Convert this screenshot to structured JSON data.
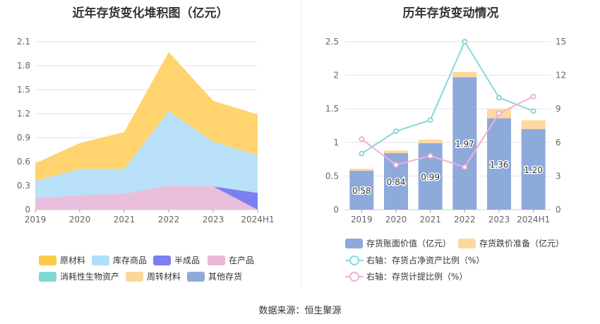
{
  "source_text": "数据来源：恒生聚源",
  "chart_data": [
    {
      "type": "area",
      "stacked": true,
      "title": "近年存货变化堆积图（亿元）",
      "categories": [
        "2019",
        "2020",
        "2021",
        "2022",
        "2023",
        "2024H1"
      ],
      "ylim": [
        0,
        2.1
      ],
      "yticks": [
        "0",
        "0.3",
        "0.6",
        "0.9",
        "1.2",
        "1.5",
        "1.8",
        "2.1"
      ],
      "series": [
        {
          "name": "在产品",
          "color": "#e9bedc",
          "values": [
            0.14,
            0.18,
            0.2,
            0.3,
            0.29,
            0.0
          ]
        },
        {
          "name": "半成品",
          "color": "#7b7ff0",
          "values": [
            0.0,
            0.0,
            0.0,
            0.0,
            0.0,
            0.21
          ]
        },
        {
          "name": "库存商品",
          "color": "#b8e0f8",
          "values": [
            0.22,
            0.33,
            0.31,
            0.93,
            0.56,
            0.47
          ]
        },
        {
          "name": "原材料",
          "color": "#ffd36e",
          "values": [
            0.22,
            0.32,
            0.46,
            0.74,
            0.51,
            0.51
          ]
        },
        {
          "name": "消耗性生物资产",
          "color": "#7fd7d2",
          "values": [
            0,
            0,
            0,
            0,
            0,
            0
          ]
        },
        {
          "name": "周转材料",
          "color": "#fdd9a0",
          "values": [
            0,
            0,
            0,
            0,
            0,
            0
          ]
        },
        {
          "name": "其他存货",
          "color": "#8eaadb",
          "values": [
            0,
            0,
            0,
            0,
            0,
            0
          ]
        }
      ],
      "legend": [
        {
          "name": "原材料",
          "color": "#ffc94a"
        },
        {
          "name": "库存商品",
          "color": "#aee0fb"
        },
        {
          "name": "半成品",
          "color": "#7b7ff0"
        },
        {
          "name": "在产品",
          "color": "#eab7d8"
        },
        {
          "name": "消耗性生物资产",
          "color": "#82d6d2"
        },
        {
          "name": "周转材料",
          "color": "#fdd69a"
        },
        {
          "name": "其他存货",
          "color": "#8eaadb"
        }
      ]
    },
    {
      "type": "bar",
      "stacked": true,
      "title": "历年存货变动情况",
      "categories": [
        "2019",
        "2020",
        "2021",
        "2022",
        "2023",
        "2024H1"
      ],
      "ylim_left": [
        0,
        2.5
      ],
      "yticks_left": [
        "0",
        "0.5",
        "1",
        "1.5",
        "2",
        "2.5"
      ],
      "ylim_right": [
        0,
        15
      ],
      "yticks_right": [
        "0",
        "3",
        "6",
        "9",
        "12",
        "15"
      ],
      "bar_series": [
        {
          "name": "存货账面价值（亿元）",
          "color": "#8eaadb",
          "values": [
            0.58,
            0.84,
            0.99,
            1.97,
            1.36,
            1.2
          ],
          "labels": [
            "0.58",
            "0.84",
            "0.99",
            "1.97",
            "1.36",
            "1.20"
          ]
        },
        {
          "name": "存货跌价准备（亿元）",
          "color": "#fdd9a0",
          "values": [
            0.03,
            0.04,
            0.05,
            0.08,
            0.14,
            0.13
          ]
        }
      ],
      "line_series": [
        {
          "name": "右轴：存货占净资产比例（%）",
          "color": "#86d8dc",
          "values": [
            5.0,
            7.0,
            8.0,
            15.0,
            10.0,
            8.8
          ]
        },
        {
          "name": "右轴：存货计提比例（%）",
          "color": "#efb0d6",
          "values": [
            6.3,
            4.0,
            4.8,
            3.8,
            8.6,
            10.1
          ]
        }
      ]
    }
  ]
}
